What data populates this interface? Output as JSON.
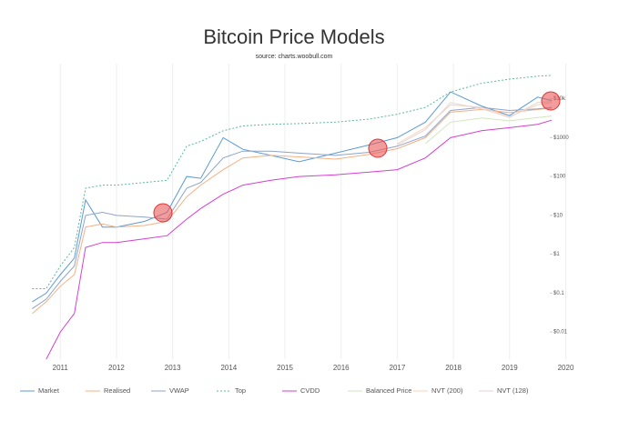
{
  "chart_data": {
    "type": "line",
    "title": "Bitcoin Price Models",
    "subtitle": "source: charts.woobull.com",
    "log_y": true,
    "grid_x": true,
    "x": [
      2010.5,
      2010.75,
      2011.0,
      2011.25,
      2011.45,
      2011.75,
      2012.0,
      2012.5,
      2012.9,
      2013.25,
      2013.5,
      2013.9,
      2014.25,
      2014.75,
      2015.25,
      2015.9,
      2016.5,
      2017.0,
      2017.5,
      2017.95,
      2018.5,
      2019.0,
      2019.5,
      2019.75
    ],
    "xlim": [
      2010.25,
      2020.3
    ],
    "xticks": [
      2011,
      2012,
      2013,
      2014,
      2015,
      2016,
      2017,
      2018,
      2019,
      2020
    ],
    "ylim": [
      0.002,
      80000
    ],
    "yticks": [
      {
        "value": 0.01,
        "label": "$0.01"
      },
      {
        "value": 0.1,
        "label": "$0.1"
      },
      {
        "value": 1,
        "label": "$1"
      },
      {
        "value": 10,
        "label": "$10"
      },
      {
        "value": 100,
        "label": "$100"
      },
      {
        "value": 1000,
        "label": "$1000"
      },
      {
        "value": 10000,
        "label": "$10k"
      }
    ],
    "series": [
      {
        "name": "Market",
        "color": "#5b9bd5",
        "dash": false,
        "values": [
          0.06,
          0.1,
          0.3,
          0.8,
          25,
          5,
          5,
          7,
          12,
          100,
          90,
          1000,
          500,
          350,
          240,
          400,
          650,
          1000,
          2500,
          15000,
          6500,
          3700,
          11000,
          9000
        ]
      },
      {
        "name": "Realised",
        "color": "#f4b183",
        "dash": false,
        "values": [
          0.03,
          0.06,
          0.15,
          0.3,
          5,
          6,
          5,
          5.5,
          7,
          30,
          60,
          150,
          300,
          350,
          320,
          280,
          370,
          520,
          1000,
          4500,
          5300,
          4400,
          5300,
          5700
        ]
      },
      {
        "name": "VWAP",
        "color": "#8fa3c9",
        "dash": false,
        "values": [
          0.04,
          0.07,
          0.2,
          0.5,
          10,
          12,
          10,
          9,
          8,
          50,
          70,
          300,
          450,
          450,
          400,
          350,
          420,
          600,
          1100,
          5000,
          6000,
          5000,
          5500,
          6000
        ]
      },
      {
        "name": "Top",
        "color": "#5cb89c",
        "dash": true,
        "values": [
          0.13,
          0.13,
          0.5,
          1.5,
          50,
          60,
          60,
          70,
          80,
          600,
          800,
          1500,
          2000,
          2200,
          2300,
          2500,
          3000,
          4000,
          6000,
          15000,
          25000,
          32000,
          38000,
          40000
        ]
      },
      {
        "name": "CVDD",
        "color": "#d43fd4",
        "dash": false,
        "values": [
          null,
          0.002,
          0.01,
          0.03,
          1.5,
          2,
          2,
          2.5,
          3,
          8,
          15,
          35,
          60,
          80,
          100,
          110,
          130,
          150,
          300,
          1000,
          1500,
          1800,
          2200,
          2800
        ]
      },
      {
        "name": "Balanced Price",
        "color": "#cfe6bf",
        "dash": false,
        "values": [
          null,
          null,
          null,
          null,
          null,
          null,
          null,
          null,
          null,
          null,
          null,
          null,
          null,
          null,
          null,
          null,
          null,
          null,
          700,
          2500,
          3200,
          2700,
          3300,
          3600
        ]
      },
      {
        "name": "NVT (200)",
        "color": "#f7d3b8",
        "dash": false,
        "values": [
          null,
          null,
          null,
          null,
          null,
          null,
          null,
          null,
          null,
          null,
          null,
          null,
          null,
          null,
          null,
          null,
          null,
          700,
          1800,
          7000,
          6000,
          3500,
          7000,
          8000
        ]
      },
      {
        "name": "NVT (128)",
        "color": "#e5d6d6",
        "dash": false,
        "values": [
          null,
          null,
          null,
          null,
          null,
          null,
          null,
          null,
          null,
          null,
          null,
          null,
          null,
          null,
          null,
          null,
          null,
          650,
          1600,
          8000,
          5500,
          3300,
          8000,
          8500
        ]
      }
    ]
  }
}
